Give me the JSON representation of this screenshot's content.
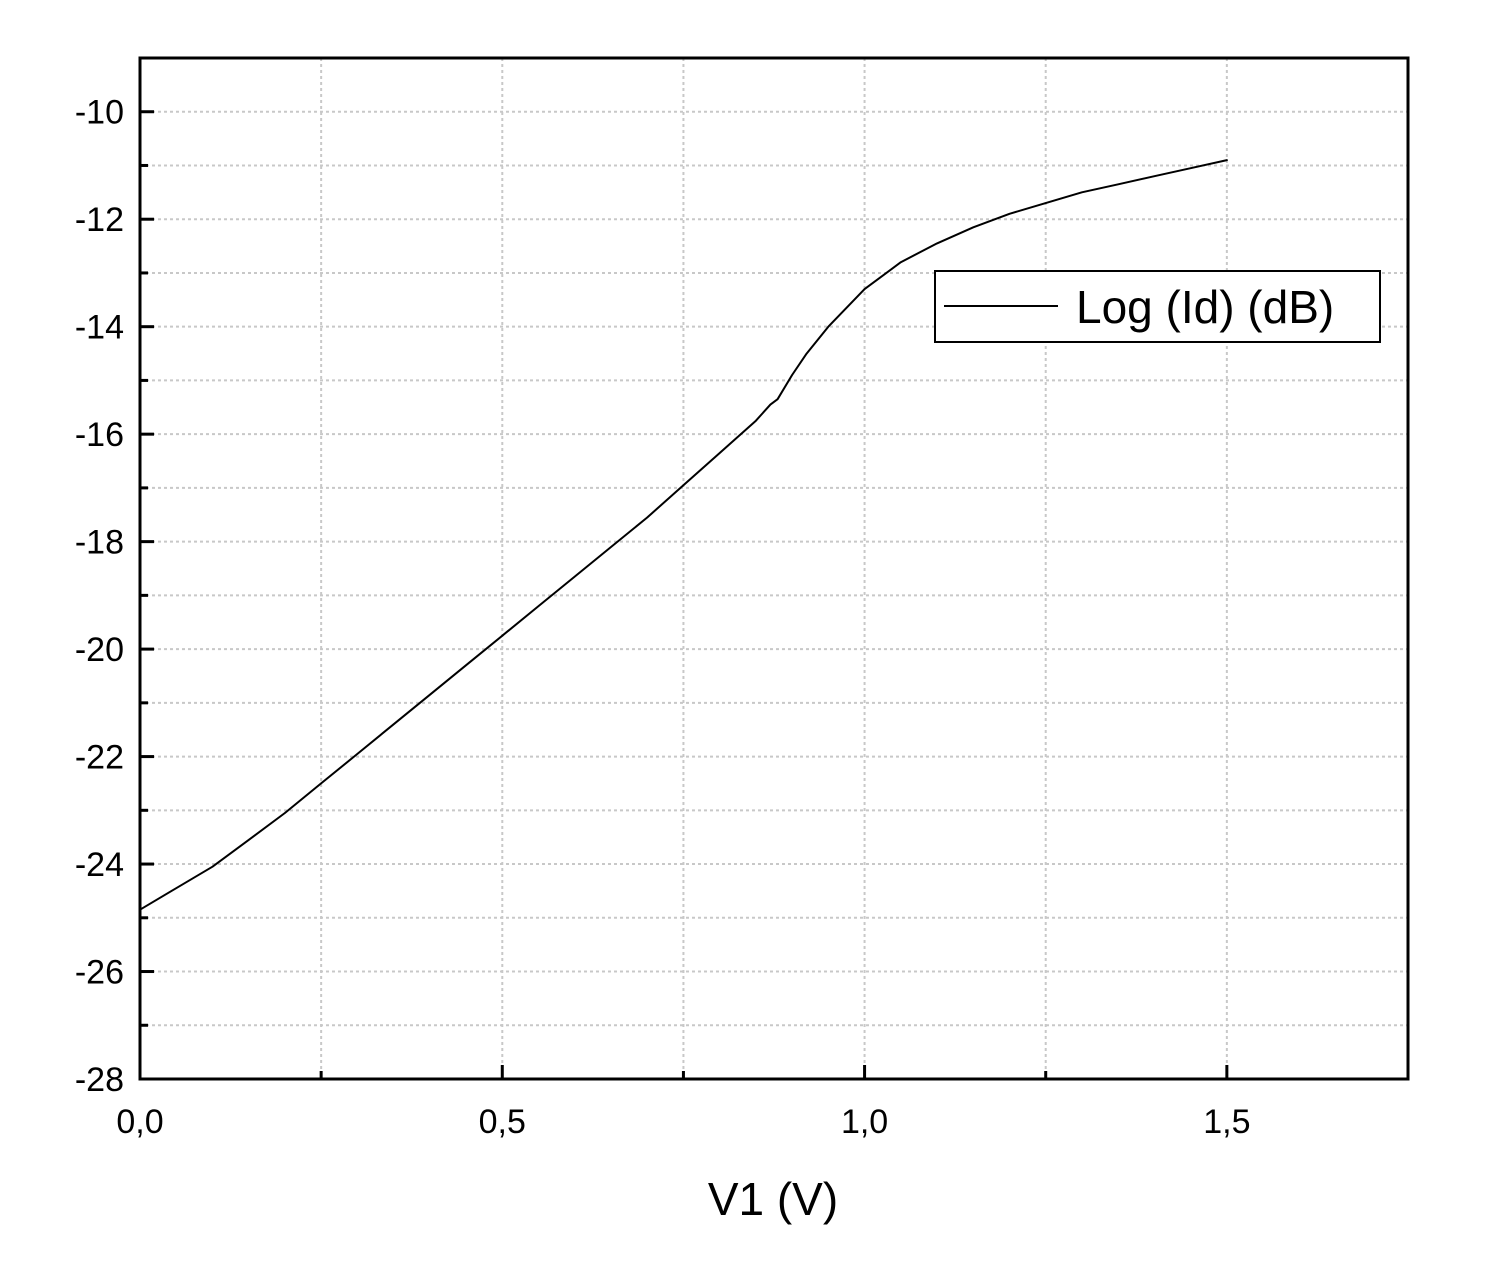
{
  "chart_data": {
    "type": "line",
    "title": "",
    "xlabel": "V1 (V)",
    "ylabel": "",
    "xlim": [
      0.0,
      1.75
    ],
    "ylim": [
      -28,
      -9
    ],
    "grid": true,
    "legend_position": "top-right",
    "x_ticks": [
      {
        "value": 0.0,
        "label": "0,0"
      },
      {
        "value": 0.5,
        "label": "0,5"
      },
      {
        "value": 1.0,
        "label": "1,0"
      },
      {
        "value": 1.5,
        "label": "1,5"
      }
    ],
    "x_minor_ticks": [
      0.25,
      0.75,
      1.25
    ],
    "y_ticks": [
      {
        "value": -10,
        "label": "-10"
      },
      {
        "value": -12,
        "label": "-12"
      },
      {
        "value": -14,
        "label": "-14"
      },
      {
        "value": -16,
        "label": "-16"
      },
      {
        "value": -18,
        "label": "-18"
      },
      {
        "value": -20,
        "label": "-20"
      },
      {
        "value": -22,
        "label": "-22"
      },
      {
        "value": -24,
        "label": "-24"
      },
      {
        "value": -26,
        "label": "-26"
      },
      {
        "value": -28,
        "label": "-28"
      }
    ],
    "y_minor_ticks": [
      -11,
      -13,
      -15,
      -17,
      -19,
      -21,
      -23,
      -25,
      -27
    ],
    "series": [
      {
        "name": "Log (Id) (dB)",
        "color": "#000000",
        "x": [
          0.0,
          0.05,
          0.1,
          0.15,
          0.2,
          0.25,
          0.3,
          0.35,
          0.4,
          0.45,
          0.5,
          0.55,
          0.6,
          0.65,
          0.7,
          0.75,
          0.8,
          0.85,
          0.87,
          0.88,
          0.9,
          0.92,
          0.95,
          1.0,
          1.05,
          1.1,
          1.15,
          1.2,
          1.25,
          1.3,
          1.35,
          1.4,
          1.45,
          1.5
        ],
        "y": [
          -24.85,
          -24.45,
          -24.05,
          -23.55,
          -23.05,
          -22.5,
          -21.95,
          -21.4,
          -20.85,
          -20.3,
          -19.75,
          -19.2,
          -18.65,
          -18.1,
          -17.55,
          -16.95,
          -16.35,
          -15.75,
          -15.45,
          -15.35,
          -14.9,
          -14.5,
          -14.0,
          -13.3,
          -12.8,
          -12.45,
          -12.15,
          -11.9,
          -11.7,
          -11.5,
          -11.35,
          -11.2,
          -11.05,
          -10.9
        ]
      }
    ]
  }
}
